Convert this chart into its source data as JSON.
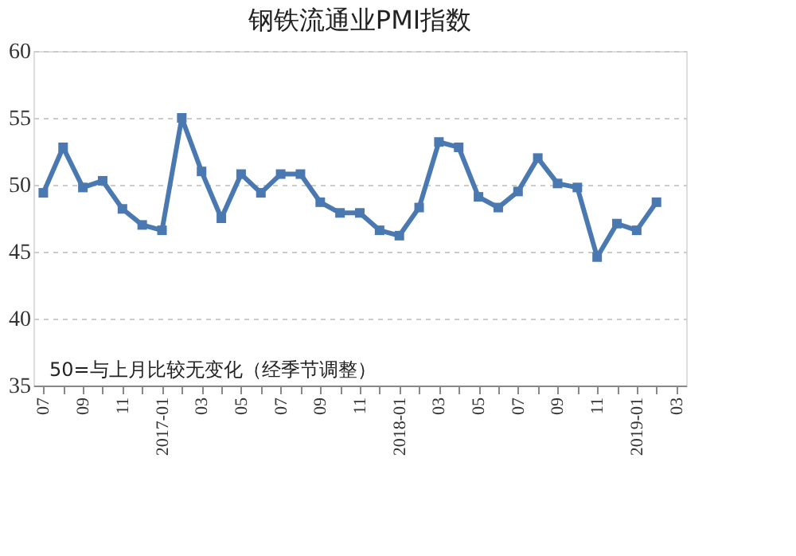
{
  "chart_data": {
    "type": "line",
    "title": "钢铁流通业PMI指数",
    "categories": [
      "07",
      null,
      "09",
      null,
      "11",
      null,
      "2017-01",
      null,
      "03",
      null,
      "05",
      null,
      "07",
      null,
      "09",
      null,
      "11",
      null,
      "2018-01",
      null,
      "03",
      null,
      "05",
      null,
      "07",
      null,
      "09",
      null,
      "11",
      null,
      "2019-01",
      null,
      "03"
    ],
    "series": [
      {
        "color": "#4a78b0",
        "values": [
          49.4,
          52.8,
          49.8,
          50.3,
          48.2,
          47.0,
          46.6,
          55.0,
          51.0,
          47.5,
          50.8,
          49.4,
          50.8,
          50.8,
          48.7,
          47.9,
          47.9,
          46.6,
          46.2,
          48.3,
          53.2,
          52.8,
          49.1,
          48.3,
          49.5,
          52.0,
          50.1,
          49.8,
          44.6,
          47.1,
          46.6,
          48.7,
          null
        ]
      }
    ],
    "ylim": [
      35,
      60
    ],
    "yticks": [
      35,
      40,
      45,
      50,
      55,
      60
    ],
    "grid": "y",
    "marker": "square",
    "line_style": "solid",
    "annotations": [
      "50=与上月比较无变化（经季节调整）"
    ]
  }
}
